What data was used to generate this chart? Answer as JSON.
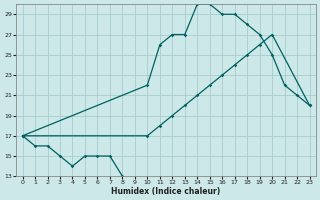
{
  "xlabel": "Humidex (Indice chaleur)",
  "background_color": "#cce8e8",
  "grid_color": "#aacccc",
  "line_color": "#006060",
  "xlim": [
    -0.5,
    23.5
  ],
  "ylim": [
    13,
    30
  ],
  "xticks": [
    0,
    1,
    2,
    3,
    4,
    5,
    6,
    7,
    8,
    9,
    10,
    11,
    12,
    13,
    14,
    15,
    16,
    17,
    18,
    19,
    20,
    21,
    22,
    23
  ],
  "yticks": [
    13,
    15,
    17,
    19,
    21,
    23,
    25,
    27,
    29
  ],
  "line1_x": [
    0,
    1,
    2,
    3,
    4,
    5,
    6,
    7,
    8
  ],
  "line1_y": [
    17,
    16,
    16,
    15,
    14,
    15,
    15,
    15,
    13
  ],
  "line2_x": [
    0,
    10,
    11,
    12,
    13,
    14,
    15,
    16,
    17,
    18,
    19,
    20,
    21,
    22,
    23
  ],
  "line2_y": [
    17,
    22,
    26,
    27,
    27,
    30,
    30,
    29,
    29,
    28,
    27,
    25,
    22,
    21,
    20
  ],
  "line3_x": [
    0,
    10,
    11,
    12,
    13,
    14,
    15,
    16,
    17,
    18,
    19,
    20,
    23
  ],
  "line3_y": [
    17,
    17,
    18,
    19,
    20,
    21,
    22,
    23,
    24,
    25,
    26,
    27,
    20
  ]
}
